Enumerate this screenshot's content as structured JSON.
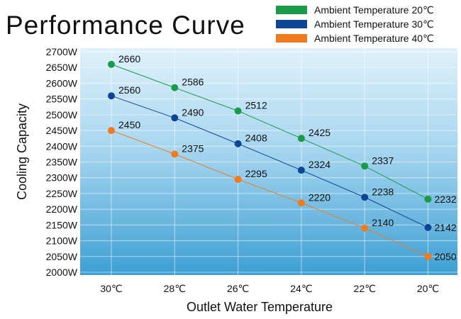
{
  "chart_data": {
    "type": "line",
    "title": "Performance Curve",
    "xlabel": "Outlet Water Temperature",
    "ylabel": "Cooling Capacity",
    "categories": [
      "30℃",
      "28℃",
      "26℃",
      "24℃",
      "22℃",
      "20℃"
    ],
    "y_ticks": [
      "2000W",
      "2050W",
      "2100W",
      "2150W",
      "2200W",
      "2250W",
      "2300W",
      "2350W",
      "2400W",
      "2450W",
      "2500W",
      "2550W",
      "2600W",
      "2650W",
      "2700W"
    ],
    "ylim": [
      2000,
      2700
    ],
    "grid": true,
    "legend_position": "top-right",
    "series": [
      {
        "name": "Ambient Temperature 20℃",
        "color": "#1a9b4a",
        "values": [
          2660,
          2586,
          2512,
          2425,
          2337,
          2232
        ]
      },
      {
        "name": "Ambient Temperature 30℃",
        "color": "#0f4595",
        "values": [
          2560,
          2490,
          2408,
          2324,
          2238,
          2142
        ]
      },
      {
        "name": "Ambient Temperature 40℃",
        "color": "#ef7b1e",
        "values": [
          2450,
          2375,
          2295,
          2220,
          2140,
          2050
        ]
      }
    ]
  }
}
